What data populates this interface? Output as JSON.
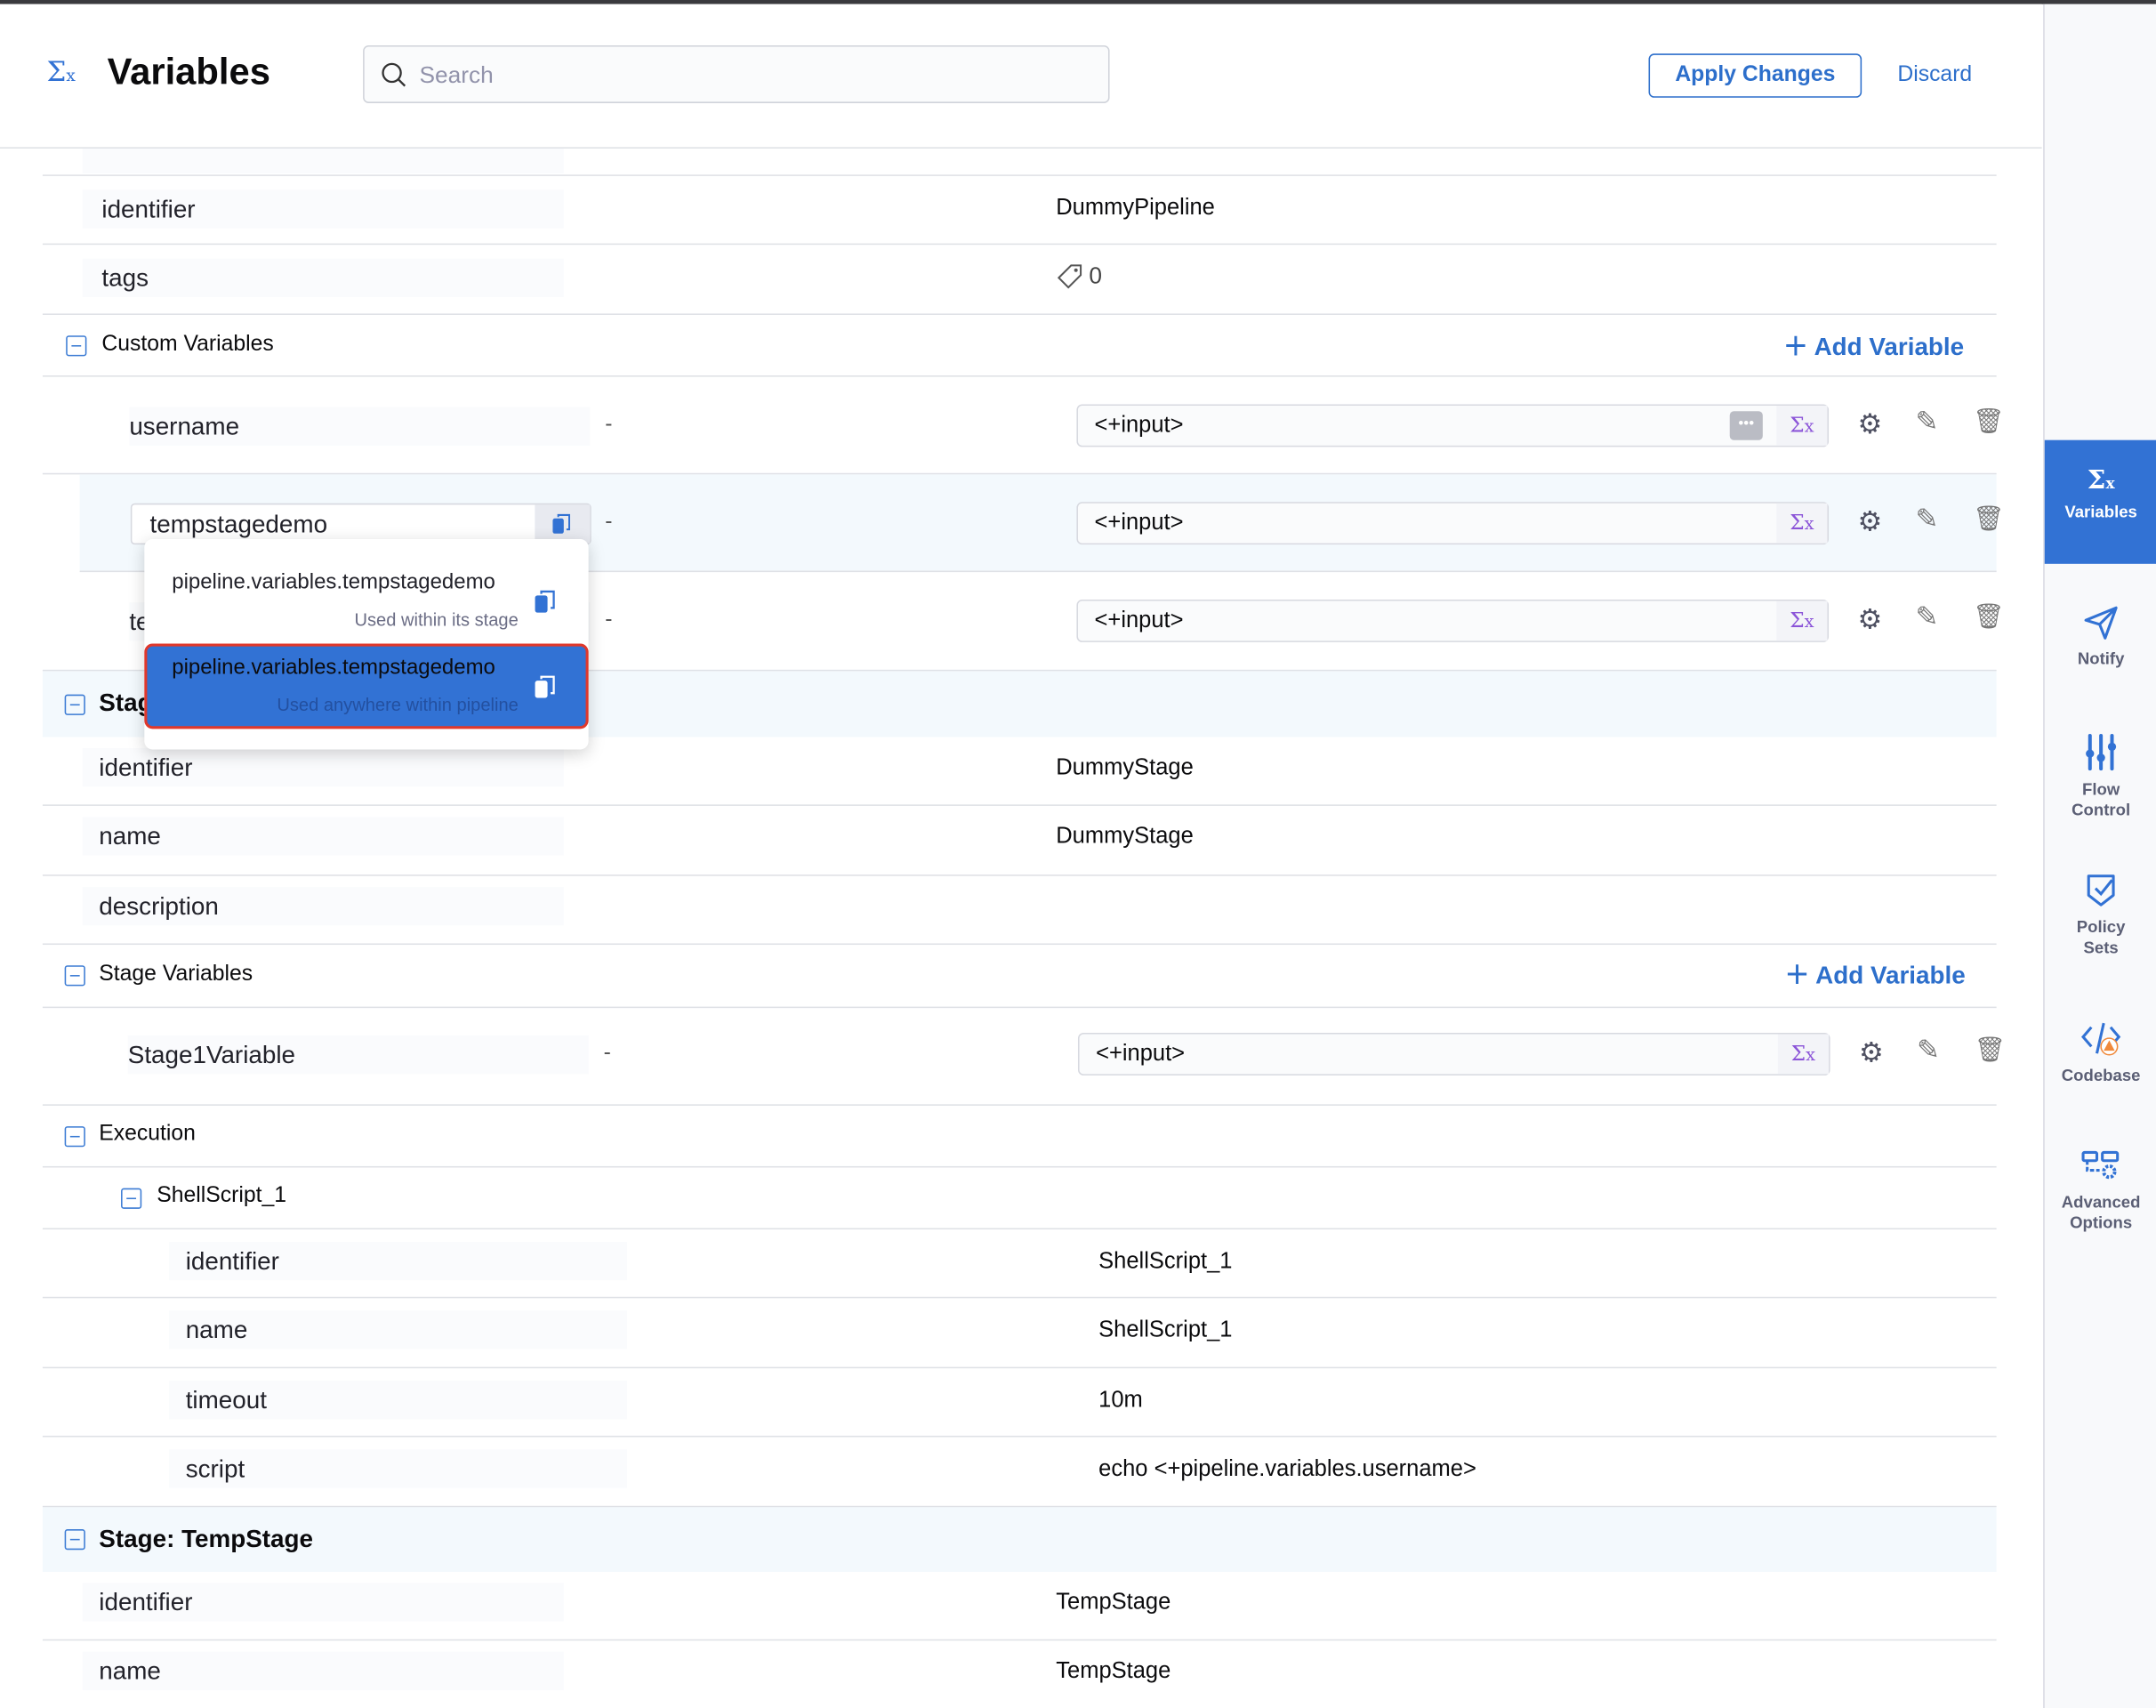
{
  "header": {
    "title": "Variables",
    "search_placeholder": "Search",
    "apply_label": "Apply Changes",
    "discard_label": "Discard"
  },
  "pipeline": {
    "identifier": {
      "label": "identifier",
      "value": "DummyPipeline"
    },
    "tags": {
      "label": "tags",
      "value": "0"
    }
  },
  "custom_variables": {
    "title": "Custom Variables",
    "add_label": "Add Variable",
    "items": [
      {
        "name": "username",
        "dash": "-",
        "value": "<+input>"
      },
      {
        "name": "tempstagedemo",
        "dash": "-",
        "value": "<+input>"
      },
      {
        "name": "te",
        "dash": "-",
        "value": "<+input>"
      }
    ]
  },
  "popup": {
    "options": [
      {
        "expr": "pipeline.variables.tempstagedemo",
        "hint": "Used within its stage"
      },
      {
        "expr": "pipeline.variables.tempstagedemo",
        "hint": "Used anywhere within pipeline",
        "selected": true
      }
    ]
  },
  "stage1": {
    "title": "Stag",
    "rows": [
      {
        "label": "identifier",
        "value": "DummyStage"
      },
      {
        "label": "name",
        "value": "DummyStage"
      },
      {
        "label": "description",
        "value": ""
      }
    ],
    "stage_variables": {
      "title": "Stage Variables",
      "add_label": "Add Variable",
      "items": [
        {
          "name": "Stage1Variable",
          "dash": "-",
          "value": "<+input>"
        }
      ]
    },
    "execution": {
      "title": "Execution",
      "step": {
        "title": "ShellScript_1",
        "rows": [
          {
            "label": "identifier",
            "value": "ShellScript_1"
          },
          {
            "label": "name",
            "value": "ShellScript_1"
          },
          {
            "label": "timeout",
            "value": "10m"
          },
          {
            "label": "script",
            "value": "echo <+pipeline.variables.username>"
          }
        ]
      }
    }
  },
  "stage2": {
    "title": "Stage: TempStage",
    "rows": [
      {
        "label": "identifier",
        "value": "TempStage"
      },
      {
        "label": "name",
        "value": "TempStage"
      }
    ]
  },
  "sidebar": {
    "items": [
      {
        "label": "Variables",
        "icon": "sigma-x-icon",
        "active": true
      },
      {
        "label": "Notify",
        "icon": "paper-plane-icon"
      },
      {
        "label": "Flow Control",
        "icon": "sliders-icon"
      },
      {
        "label": "Policy Sets",
        "icon": "shield-check-icon"
      },
      {
        "label": "Codebase",
        "icon": "code-warning-icon"
      },
      {
        "label": "Advanced Options",
        "icon": "advanced-gear-icon"
      }
    ]
  },
  "colors": {
    "accent": "#3272d4",
    "highlight_row": "#f3f9fd",
    "selected_border": "#e0382b",
    "sigma": "#8b54d8"
  }
}
